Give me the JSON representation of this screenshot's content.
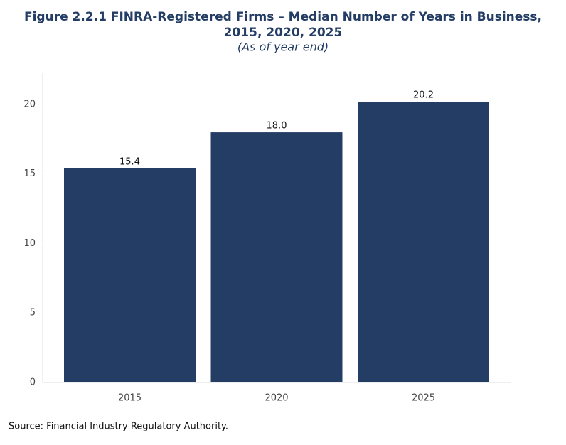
{
  "chart_data": {
    "type": "bar",
    "title": [
      "Figure 2.2.1 FINRA-Registered Firms – Median Number of Years in Business,",
      "2015, 2020, 2025"
    ],
    "subtitle": "(As of year end)",
    "categories": [
      "2015",
      "2020",
      "2025"
    ],
    "values": [
      15.4,
      18,
      20.2
    ],
    "value_labels": [
      "15.4",
      "18.0",
      "20.2"
    ],
    "color": "#243d64",
    "ylim": [
      0,
      22.25
    ],
    "yticks": [
      0,
      5,
      10,
      15,
      20
    ],
    "grid": false,
    "source": "Source: Financial Industry Regulatory Authority."
  }
}
